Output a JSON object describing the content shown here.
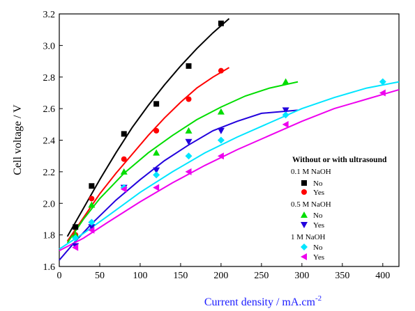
{
  "chart_data": {
    "type": "scatter",
    "title": "",
    "xlabel": "Current density / mA.cm",
    "xlabel_sup": "-2",
    "ylabel": "Cell voltage / V",
    "xlim": [
      0,
      420
    ],
    "ylim": [
      1.6,
      3.2
    ],
    "xticks": [
      "0",
      "50",
      "100",
      "150",
      "200",
      "250",
      "300",
      "350",
      "400"
    ],
    "yticks": [
      "1.6",
      "1.8",
      "2.0",
      "2.2",
      "2.4",
      "2.6",
      "2.8",
      "3.0",
      "3.2"
    ],
    "grid": false,
    "legend_position": "right",
    "legend": {
      "title": "Without or with ultrasound",
      "groups": [
        {
          "label": "0.1 M NaOH",
          "entries": [
            "No",
            "Yes"
          ]
        },
        {
          "label": "0.5 M NaOH",
          "entries": [
            "No",
            "Yes"
          ]
        },
        {
          "label": "1 M NaOH",
          "entries": [
            "No",
            "Yes"
          ]
        }
      ]
    },
    "series": [
      {
        "color": "#000000",
        "marker": "square",
        "x": [
          20,
          40,
          80,
          120,
          160,
          200
        ],
        "y": [
          1.85,
          2.11,
          2.44,
          2.63,
          2.87,
          3.14
        ],
        "fit_x": [
          10,
          30,
          50,
          70,
          90,
          110,
          130,
          150,
          170,
          190,
          210
        ],
        "fit_y": [
          1.79,
          1.97,
          2.15,
          2.32,
          2.48,
          2.62,
          2.75,
          2.87,
          2.98,
          3.08,
          3.17
        ]
      },
      {
        "color": "#ff0000",
        "marker": "circle",
        "x": [
          20,
          40,
          80,
          120,
          160,
          200
        ],
        "y": [
          1.8,
          2.03,
          2.28,
          2.46,
          2.66,
          2.84
        ],
        "fit_x": [
          10,
          30,
          50,
          70,
          90,
          110,
          130,
          150,
          170,
          190,
          210
        ],
        "fit_y": [
          1.76,
          1.91,
          2.06,
          2.19,
          2.31,
          2.43,
          2.54,
          2.64,
          2.73,
          2.8,
          2.86
        ]
      },
      {
        "color": "#00dd00",
        "marker": "triangle-up",
        "x": [
          20,
          40,
          80,
          120,
          160,
          200,
          280
        ],
        "y": [
          1.8,
          1.99,
          2.2,
          2.32,
          2.46,
          2.58,
          2.77
        ],
        "fit_x": [
          10,
          30,
          50,
          80,
          110,
          140,
          170,
          200,
          230,
          260,
          295
        ],
        "fit_y": [
          1.75,
          1.9,
          2.03,
          2.19,
          2.32,
          2.43,
          2.53,
          2.61,
          2.68,
          2.73,
          2.77
        ]
      },
      {
        "color": "#2200dd",
        "marker": "triangle-down",
        "x": [
          20,
          40,
          80,
          120,
          160,
          200,
          280
        ],
        "y": [
          1.73,
          1.85,
          2.1,
          2.21,
          2.39,
          2.46,
          2.59
        ],
        "fit_x": [
          0,
          20,
          40,
          70,
          100,
          130,
          160,
          190,
          220,
          250,
          295
        ],
        "fit_y": [
          1.64,
          1.76,
          1.87,
          2.02,
          2.15,
          2.27,
          2.37,
          2.46,
          2.52,
          2.57,
          2.59
        ]
      },
      {
        "color": "#00e5ff",
        "marker": "diamond",
        "x": [
          20,
          40,
          80,
          120,
          160,
          200,
          280,
          400
        ],
        "y": [
          1.78,
          1.88,
          2.1,
          2.18,
          2.3,
          2.4,
          2.56,
          2.77
        ],
        "fit_x": [
          0,
          30,
          60,
          100,
          140,
          180,
          220,
          260,
          300,
          340,
          380,
          420
        ],
        "fit_y": [
          1.71,
          1.81,
          1.92,
          2.07,
          2.2,
          2.32,
          2.42,
          2.51,
          2.6,
          2.67,
          2.73,
          2.77
        ]
      },
      {
        "color": "#ee00ee",
        "marker": "triangle-left",
        "x": [
          20,
          40,
          80,
          120,
          160,
          200,
          280,
          400
        ],
        "y": [
          1.72,
          1.83,
          2.09,
          2.1,
          2.2,
          2.3,
          2.5,
          2.7
        ],
        "fit_x": [
          0,
          30,
          60,
          100,
          140,
          180,
          220,
          260,
          300,
          340,
          380,
          420
        ],
        "fit_y": [
          1.7,
          1.78,
          1.88,
          2.01,
          2.13,
          2.24,
          2.34,
          2.43,
          2.52,
          2.6,
          2.66,
          2.72
        ]
      }
    ]
  }
}
